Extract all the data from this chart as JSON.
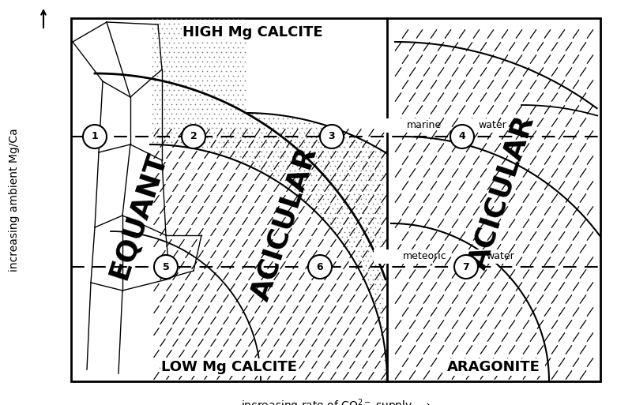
{
  "fig_width": 8.0,
  "fig_height": 5.13,
  "dpi": 100,
  "bg_color": "#ffffff",
  "label_high_mg": "HIGH Mg CALCITE",
  "label_low_mg": "LOW Mg CALCITE",
  "label_aragonite": "ARAGONITE",
  "label_equant": "EQUANT",
  "label_acicular_left": "ACICULAR",
  "label_acicular_right": "ACICULAR",
  "label_marine": "marine",
  "label_water1": "water",
  "label_meteoric": "meteoric",
  "label_water2": "water",
  "circle_labels": [
    "1",
    "2",
    "3",
    "4",
    "5",
    "6",
    "7"
  ],
  "xlabel_parts": [
    "increasing rate of CO",
    "supply "
  ],
  "ylabel": "increasing ambient Mg/Ca"
}
